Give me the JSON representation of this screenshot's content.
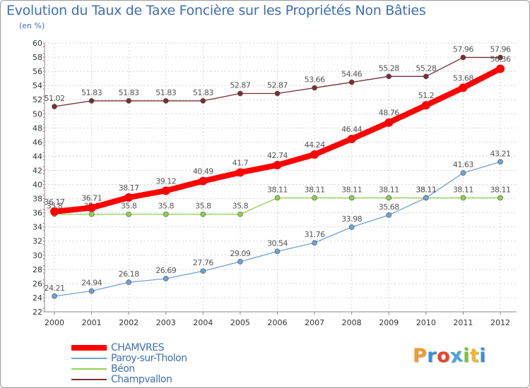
{
  "title": "Evolution du Taux de Taxe Foncière sur les Propriétés Non Bâties",
  "subtitle": "(en %)",
  "logo": {
    "text": "Proxiti",
    "colors": [
      "#f29a2e",
      "#3a8fd6",
      "#e8432a",
      "#4aa3df",
      "#7cc242",
      "#f2b630",
      "#3a8fd6"
    ]
  },
  "chart_data": {
    "type": "line",
    "title": "Evolution du Taux de Taxe Foncière sur les Propriétés Non Bâties",
    "ylabel": "(en %)",
    "xlabel": "",
    "ylim": [
      22,
      60
    ],
    "yticks": [
      22,
      24,
      26,
      28,
      30,
      32,
      34,
      36,
      38,
      40,
      42,
      44,
      46,
      48,
      50,
      52,
      54,
      56,
      58,
      60
    ],
    "x": [
      "2000",
      "2001",
      "2002",
      "2003",
      "2004",
      "2005",
      "2006",
      "2007",
      "2008",
      "2009",
      "2010",
      "2011",
      "2012"
    ],
    "series": [
      {
        "name": "Champvallon",
        "color": "#7b2e35",
        "values": [
          51.02,
          51.83,
          51.83,
          51.83,
          51.83,
          52.87,
          52.87,
          53.66,
          54.46,
          55.28,
          55.28,
          57.96,
          57.96
        ],
        "labels": [
          "51.02",
          "51.83",
          "51.83",
          "51.83",
          "51.83",
          "52.87",
          "52.87",
          "53.66",
          "54.46",
          "55.28",
          "55.28",
          "57.96",
          "57.96"
        ]
      },
      {
        "name": "Béon",
        "color": "#8fd14f",
        "values": [
          35.8,
          35.8,
          35.8,
          35.8,
          35.8,
          35.8,
          38.11,
          38.11,
          38.11,
          38.11,
          38.11,
          38.11,
          38.11
        ],
        "labels": [
          "35.8",
          "35.8",
          "35.8",
          "35.8",
          "35.8",
          "35.8",
          "38.11",
          "38.11",
          "38.11",
          "38.11",
          "38.11",
          "38.11",
          "38.11"
        ]
      },
      {
        "name": "Paroy-sur-Tholon",
        "color": "#6fa3d8",
        "values": [
          24.21,
          24.94,
          26.18,
          26.69,
          27.76,
          29.09,
          30.54,
          31.76,
          33.98,
          35.68,
          38.11,
          41.63,
          43.21
        ],
        "labels": [
          "24.21",
          "24.94",
          "26.18",
          "26.69",
          "27.76",
          "29.09",
          "30.54",
          "31.76",
          "33.98",
          "35.68",
          "38.11",
          "41.63",
          "43.21"
        ]
      },
      {
        "name": "CHAMVRES",
        "color": "#ff0000",
        "values": [
          36.17,
          36.71,
          38.17,
          39.12,
          40.49,
          41.7,
          42.74,
          44.24,
          46.44,
          48.76,
          51.2,
          53.68,
          56.36
        ],
        "labels": [
          "36.17",
          "36.71",
          "38.17",
          "39.12",
          "40.49",
          "41.7",
          "42.74",
          "44.24",
          "46.44",
          "48.76",
          "51.2",
          "53.68",
          "56.36"
        ]
      }
    ],
    "legend": [
      {
        "name": "CHAMVRES",
        "color": "#ff0000"
      },
      {
        "name": "Paroy-sur-Tholon",
        "color": "#6fa3d8"
      },
      {
        "name": "Béon",
        "color": "#8fd14f"
      },
      {
        "name": "Champvallon",
        "color": "#7b2e35"
      }
    ],
    "grid": true,
    "legend_position": "bottom-left"
  }
}
